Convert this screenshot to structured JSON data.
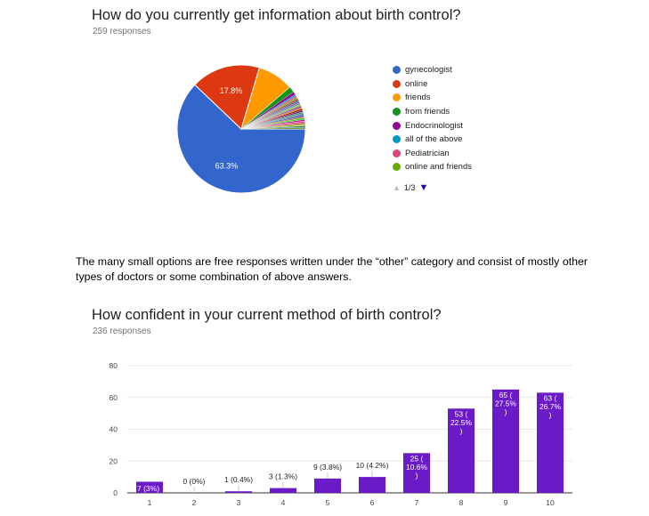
{
  "pie_section": {
    "title": "How do you currently get information about birth control?",
    "responses": "259 responses",
    "legend": [
      {
        "label": "gynecologist",
        "color": "#3366cc"
      },
      {
        "label": "online",
        "color": "#dc3912"
      },
      {
        "label": "friends",
        "color": "#ff9900"
      },
      {
        "label": "from friends",
        "color": "#109618"
      },
      {
        "label": "Endocrinologist",
        "color": "#990099"
      },
      {
        "label": "all of the above",
        "color": "#0099c6"
      },
      {
        "label": "Pediatrician",
        "color": "#dd4477"
      },
      {
        "label": "online and friends",
        "color": "#66aa00"
      }
    ],
    "pager": {
      "up": "▲",
      "page": "1/3",
      "down": "▼"
    }
  },
  "note": "The many small options are free responses written under the “other” category and consist of mostly other types of doctors or some combination of above answers.",
  "bar_section": {
    "title": "How confident in your current method of birth control?",
    "responses": "236 responses"
  },
  "chart_data": [
    {
      "type": "pie",
      "title": "How do you currently get information about birth control?",
      "slices": [
        {
          "label": "gynecologist",
          "value": 63.3,
          "shown_label": "63.3%",
          "color": "#3366cc"
        },
        {
          "label": "online",
          "value": 17.8,
          "shown_label": "17.8%",
          "color": "#dc3912"
        },
        {
          "label": "friends",
          "value": 9.3,
          "color": "#ff9900"
        },
        {
          "label": "from friends",
          "value": 1.5,
          "color": "#109618"
        },
        {
          "label": "Endocrinologist",
          "value": 0.8,
          "color": "#990099"
        },
        {
          "label": "all of the above",
          "value": 0.4,
          "color": "#0099c6"
        },
        {
          "label": "Pediatrician",
          "value": 0.4,
          "color": "#dd4477"
        },
        {
          "label": "online and friends",
          "value": 0.4,
          "color": "#66aa00"
        },
        {
          "label": "",
          "value": 0.4,
          "color": "#b82e2e"
        },
        {
          "label": "",
          "value": 0.4,
          "color": "#316395"
        },
        {
          "label": "",
          "value": 0.4,
          "color": "#994499"
        },
        {
          "label": "",
          "value": 0.4,
          "color": "#22aa99"
        },
        {
          "label": "",
          "value": 0.4,
          "color": "#aaaa11"
        },
        {
          "label": "",
          "value": 0.4,
          "color": "#6633cc"
        },
        {
          "label": "",
          "value": 0.4,
          "color": "#e67300"
        },
        {
          "label": "",
          "value": 0.4,
          "color": "#8b0707"
        },
        {
          "label": "",
          "value": 0.4,
          "color": "#651067"
        },
        {
          "label": "",
          "value": 0.4,
          "color": "#329262"
        },
        {
          "label": "",
          "value": 0.4,
          "color": "#5574a6"
        },
        {
          "label": "",
          "value": 0.4,
          "color": "#3b3eac"
        },
        {
          "label": "",
          "value": 0.4,
          "color": "#b77322"
        },
        {
          "label": "",
          "value": 0.4,
          "color": "#16d620"
        },
        {
          "label": "",
          "value": 0.4,
          "color": "#b91383"
        },
        {
          "label": "",
          "value": 0.4,
          "color": "#f4359e"
        },
        {
          "label": "",
          "value": 0.4,
          "color": "#9c5935"
        },
        {
          "label": "",
          "value": 0.4,
          "color": "#a9c413"
        },
        {
          "label": "",
          "value": 0.4,
          "color": "#2a778d"
        },
        {
          "label": "",
          "value": 0.4,
          "color": "#668d1c"
        }
      ]
    },
    {
      "type": "bar",
      "title": "How confident in your current method of birth control?",
      "categories": [
        "1",
        "2",
        "3",
        "4",
        "5",
        "6",
        "7",
        "8",
        "9",
        "10"
      ],
      "values": [
        7,
        0,
        1,
        3,
        9,
        10,
        25,
        53,
        65,
        63
      ],
      "data_labels": [
        [
          "7 (3%)"
        ],
        [
          "0 (0%)"
        ],
        [
          "1 (0.4%)"
        ],
        [
          "3 (1.3%)"
        ],
        [
          "9 (3.8%)"
        ],
        [
          "10 (4.2%)"
        ],
        [
          "25 (",
          "10.6%",
          ")"
        ],
        [
          "53 (",
          "22.5%",
          ")"
        ],
        [
          "65 (",
          "27.5%",
          ")"
        ],
        [
          "63 (",
          "26.7%",
          ")"
        ]
      ],
      "yticks": [
        "0",
        "20",
        "40",
        "60",
        "80"
      ],
      "ylim": [
        0,
        80
      ],
      "bar_color": "#6a1bc7",
      "grid": true
    }
  ]
}
